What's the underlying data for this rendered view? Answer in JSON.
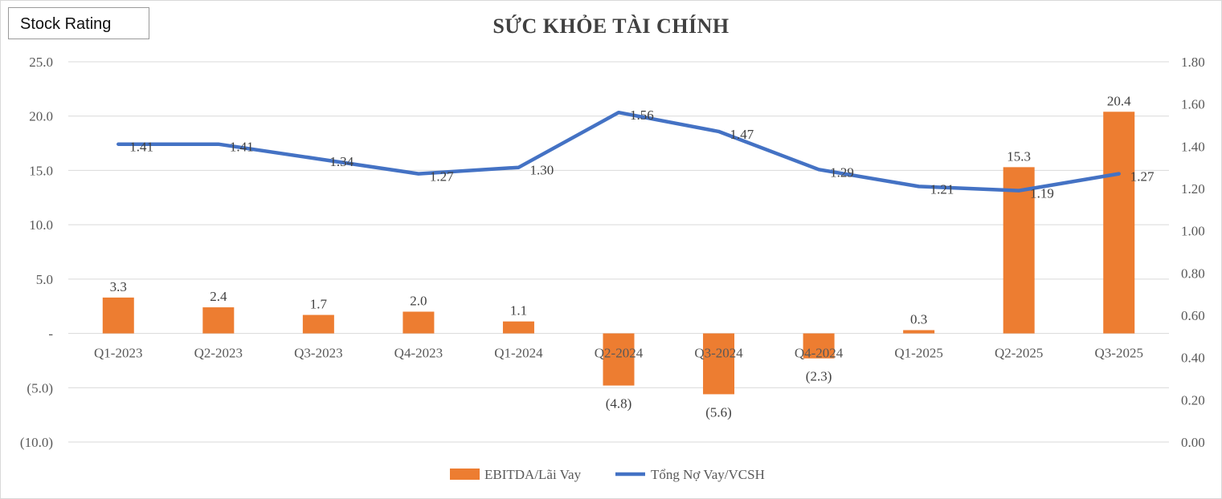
{
  "badge": {
    "label": "Stock Rating"
  },
  "chart_data": {
    "type": "bar",
    "title": "SỨC KHỎE TÀI CHÍNH",
    "categories": [
      "Q1-2023",
      "Q2-2023",
      "Q3-2023",
      "Q4-2023",
      "Q1-2024",
      "Q2-2024",
      "Q3-2024",
      "Q4-2024",
      "Q1-2025",
      "Q2-2025",
      "Q3-2025"
    ],
    "series": [
      {
        "name": "EBITDA/Lãi Vay",
        "type": "bar",
        "axis": "left",
        "color": "#ED7D31",
        "values": [
          3.3,
          2.4,
          1.7,
          2.0,
          1.1,
          -4.8,
          -5.6,
          -2.3,
          0.3,
          15.3,
          20.4
        ],
        "labels": [
          "3.3",
          "2.4",
          "1.7",
          "2.0",
          "1.1",
          "(4.8)",
          "(5.6)",
          "(2.3)",
          "0.3",
          "15.3",
          "20.4"
        ]
      },
      {
        "name": "Tổng Nợ Vay/VCSH",
        "type": "line",
        "axis": "right",
        "color": "#4472C4",
        "values": [
          1.41,
          1.41,
          1.34,
          1.27,
          1.3,
          1.56,
          1.47,
          1.29,
          1.21,
          1.19,
          1.27
        ],
        "labels": [
          "1.41",
          "1.41",
          "1.34",
          "1.27",
          "1.30",
          "1.56",
          "1.47",
          "1.29",
          "1.21",
          "1.19",
          "1.27"
        ]
      }
    ],
    "y_left": {
      "ylim": [
        -10,
        25
      ],
      "ticks": [
        25,
        20,
        15,
        10,
        5,
        0,
        -5,
        -10
      ],
      "tick_labels": [
        "25.0",
        "20.0",
        "15.0",
        "10.0",
        "5.0",
        "-",
        "(5.0)",
        "(10.0)"
      ]
    },
    "y_right": {
      "ylim": [
        0,
        1.8
      ],
      "ticks": [
        1.8,
        1.6,
        1.4,
        1.2,
        1.0,
        0.8,
        0.6,
        0.4,
        0.2,
        0.0
      ],
      "tick_labels": [
        "1.80",
        "1.60",
        "1.40",
        "1.20",
        "1.00",
        "0.80",
        "0.60",
        "0.40",
        "0.20",
        "0.00"
      ]
    },
    "grid": true,
    "legend_position": "bottom-center"
  }
}
